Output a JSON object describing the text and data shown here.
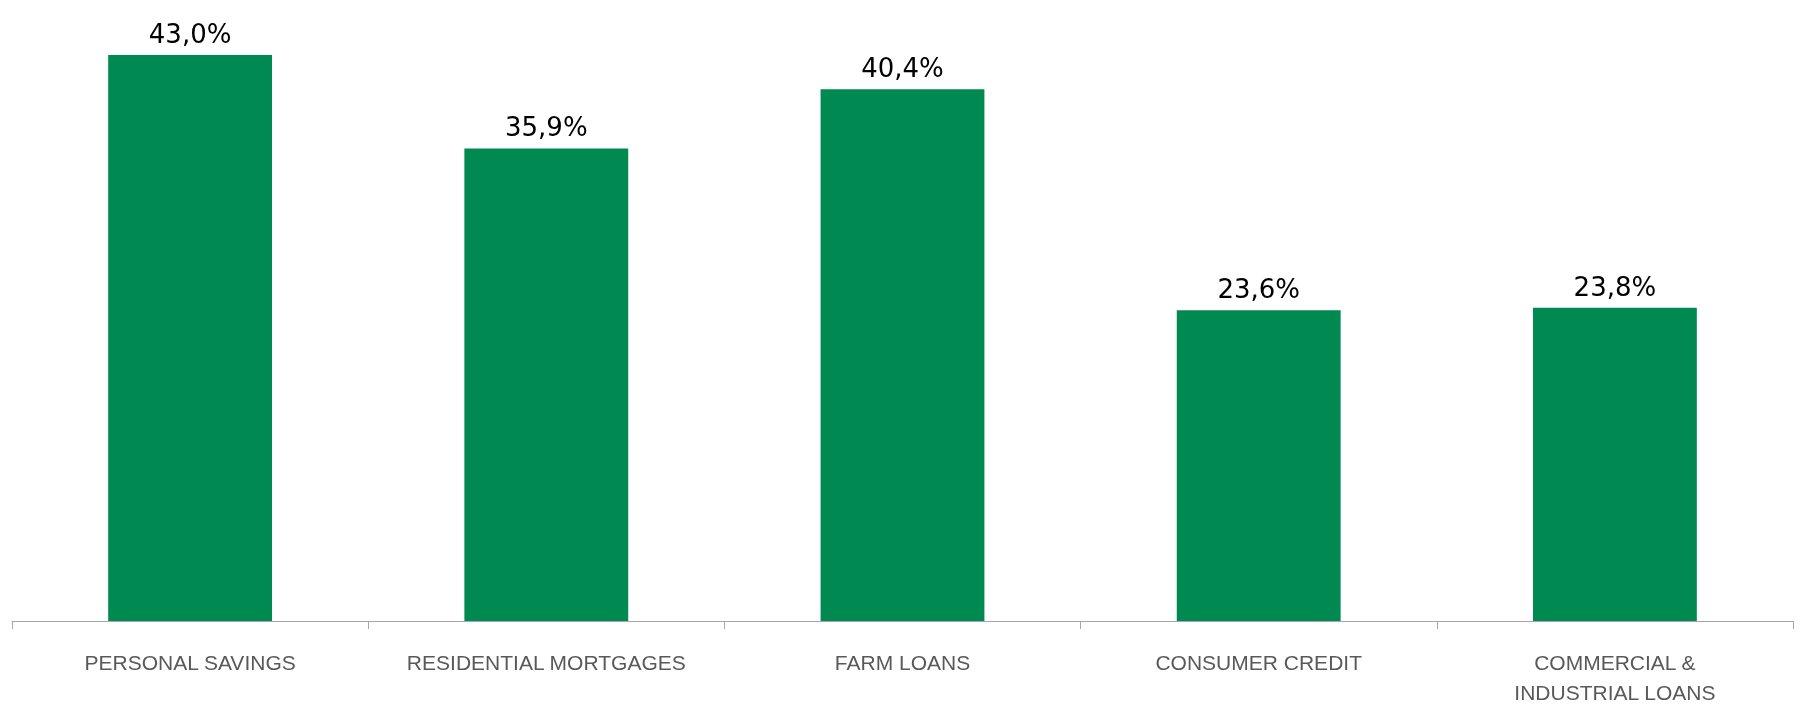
{
  "chart_data": {
    "type": "bar",
    "categories": [
      "PERSONAL SAVINGS",
      "RESIDENTIAL MORTGAGES",
      "FARM LOANS",
      "CONSUMER CREDIT",
      "COMMERCIAL &\nINDUSTRIAL LOANS"
    ],
    "values": [
      43.0,
      35.9,
      40.4,
      23.6,
      23.8
    ],
    "value_labels": [
      "43,0%",
      "35,9%",
      "40,4%",
      "23,6%",
      "23,8%"
    ],
    "color": "#008a52"
  }
}
